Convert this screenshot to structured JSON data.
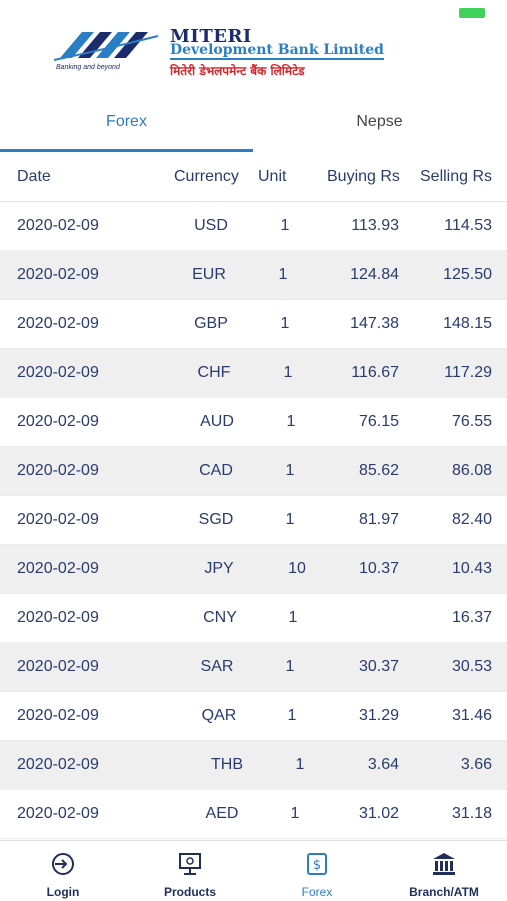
{
  "header": {
    "bank_name": "MITERI",
    "bank_subtitle": "Development Bank Limited",
    "bank_nepali": "मितेरी डेभलपमेन्ट बैंक लिमिटेड",
    "tagline": "Banking and beyond"
  },
  "tabs": [
    {
      "label": "Forex",
      "active": true
    },
    {
      "label": "Nepse",
      "active": false
    }
  ],
  "table": {
    "headers": [
      "Date",
      "Currency",
      "Unit",
      "Buying Rs",
      "Selling Rs"
    ],
    "rows": [
      {
        "date": "2020-02-09",
        "currency": "USD",
        "unit": "1",
        "buying": "113.93",
        "selling": "114.53"
      },
      {
        "date": "2020-02-09",
        "currency": "EUR",
        "unit": "1",
        "buying": "124.84",
        "selling": "125.50"
      },
      {
        "date": "2020-02-09",
        "currency": "GBP",
        "unit": "1",
        "buying": "147.38",
        "selling": "148.15"
      },
      {
        "date": "2020-02-09",
        "currency": "CHF",
        "unit": "1",
        "buying": "116.67",
        "selling": "117.29"
      },
      {
        "date": "2020-02-09",
        "currency": "AUD",
        "unit": "1",
        "buying": "76.15",
        "selling": "76.55"
      },
      {
        "date": "2020-02-09",
        "currency": "CAD",
        "unit": "1",
        "buying": "85.62",
        "selling": "86.08"
      },
      {
        "date": "2020-02-09",
        "currency": "SGD",
        "unit": "1",
        "buying": "81.97",
        "selling": "82.40"
      },
      {
        "date": "2020-02-09",
        "currency": "JPY",
        "unit": "10",
        "buying": "10.37",
        "selling": "10.43"
      },
      {
        "date": "2020-02-09",
        "currency": "CNY",
        "unit": "1",
        "buying": "",
        "selling": "16.37"
      },
      {
        "date": "2020-02-09",
        "currency": "SAR",
        "unit": "1",
        "buying": "30.37",
        "selling": "30.53"
      },
      {
        "date": "2020-02-09",
        "currency": "QAR",
        "unit": "1",
        "buying": "31.29",
        "selling": "31.46"
      },
      {
        "date": "2020-02-09",
        "currency": "THB",
        "unit": "1",
        "buying": "3.64",
        "selling": "3.66"
      },
      {
        "date": "2020-02-09",
        "currency": "AED",
        "unit": "1",
        "buying": "31.02",
        "selling": "31.18"
      }
    ]
  },
  "bottom_nav": [
    {
      "label": "Login",
      "icon": "login-icon",
      "active": false
    },
    {
      "label": "Products",
      "icon": "products-icon",
      "active": false
    },
    {
      "label": "Forex",
      "icon": "forex-icon",
      "active": true
    },
    {
      "label": "Branch/ATM",
      "icon": "bank-building-icon",
      "active": false
    }
  ],
  "colors": {
    "accent": "#2e7cc4",
    "text": "#2a3b6e",
    "row_alt": "#efefef",
    "battery": "#3fd15a"
  }
}
